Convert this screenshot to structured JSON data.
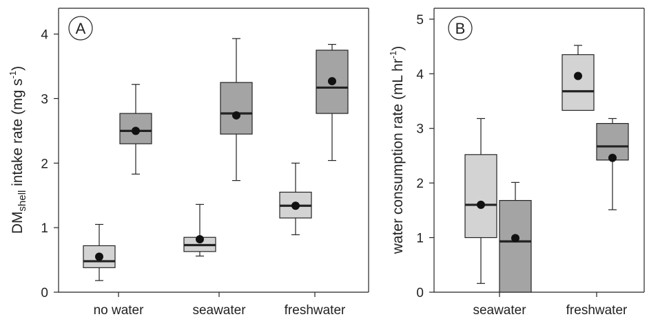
{
  "chart_data": [
    {
      "type": "box",
      "panel_label": "A",
      "ylabel": {
        "main": "DM",
        "sub": "shell",
        "rest": " intake rate (mg s",
        "sup": "-1",
        "close": ")"
      },
      "ylim": [
        0,
        4.4
      ],
      "yticks": [
        0,
        1,
        2,
        3,
        4
      ],
      "categories": [
        "no water",
        "seawater",
        "freshwater"
      ],
      "series": [
        {
          "color": "#d3d3d3",
          "boxes": [
            {
              "min": 0.18,
              "q1": 0.38,
              "median": 0.48,
              "q3": 0.72,
              "max": 1.05,
              "mean": 0.55
            },
            {
              "min": 0.56,
              "q1": 0.63,
              "median": 0.73,
              "q3": 0.85,
              "max": 1.36,
              "mean": 0.82
            },
            {
              "min": 0.89,
              "q1": 1.15,
              "median": 1.34,
              "q3": 1.55,
              "max": 2.0,
              "mean": 1.34
            }
          ]
        },
        {
          "color": "#a4a4a4",
          "boxes": [
            {
              "min": 1.83,
              "q1": 2.3,
              "median": 2.5,
              "q3": 2.77,
              "max": 3.22,
              "mean": 2.5
            },
            {
              "min": 1.73,
              "q1": 2.45,
              "median": 2.77,
              "q3": 3.25,
              "max": 3.93,
              "mean": 2.74
            },
            {
              "min": 2.04,
              "q1": 2.77,
              "median": 3.17,
              "q3": 3.75,
              "max": 3.84,
              "mean": 3.27
            }
          ]
        }
      ]
    },
    {
      "type": "box",
      "panel_label": "B",
      "ylabel": {
        "main": "water consumption rate (mL hr",
        "sup": "-1",
        "close": ")"
      },
      "ylim": [
        0,
        5.2
      ],
      "yticks": [
        0,
        1,
        2,
        3,
        4,
        5
      ],
      "categories": [
        "seawater",
        "freshwater"
      ],
      "series": [
        {
          "color": "#d3d3d3",
          "boxes": [
            {
              "min": 0.16,
              "q1": 1.0,
              "median": 1.6,
              "q3": 2.52,
              "max": 3.18,
              "mean": 1.6
            },
            {
              "min": 3.33,
              "q1": 3.33,
              "median": 3.68,
              "q3": 4.35,
              "max": 4.52,
              "mean": 3.96
            }
          ]
        },
        {
          "color": "#a4a4a4",
          "boxes": [
            {
              "min": 0,
              "q1": 0,
              "median": 0.93,
              "q3": 1.68,
              "max": 2.01,
              "mean": 0.99
            },
            {
              "min": 1.51,
              "q1": 2.42,
              "median": 2.67,
              "q3": 3.09,
              "max": 3.18,
              "mean": 2.46
            }
          ]
        }
      ]
    }
  ]
}
